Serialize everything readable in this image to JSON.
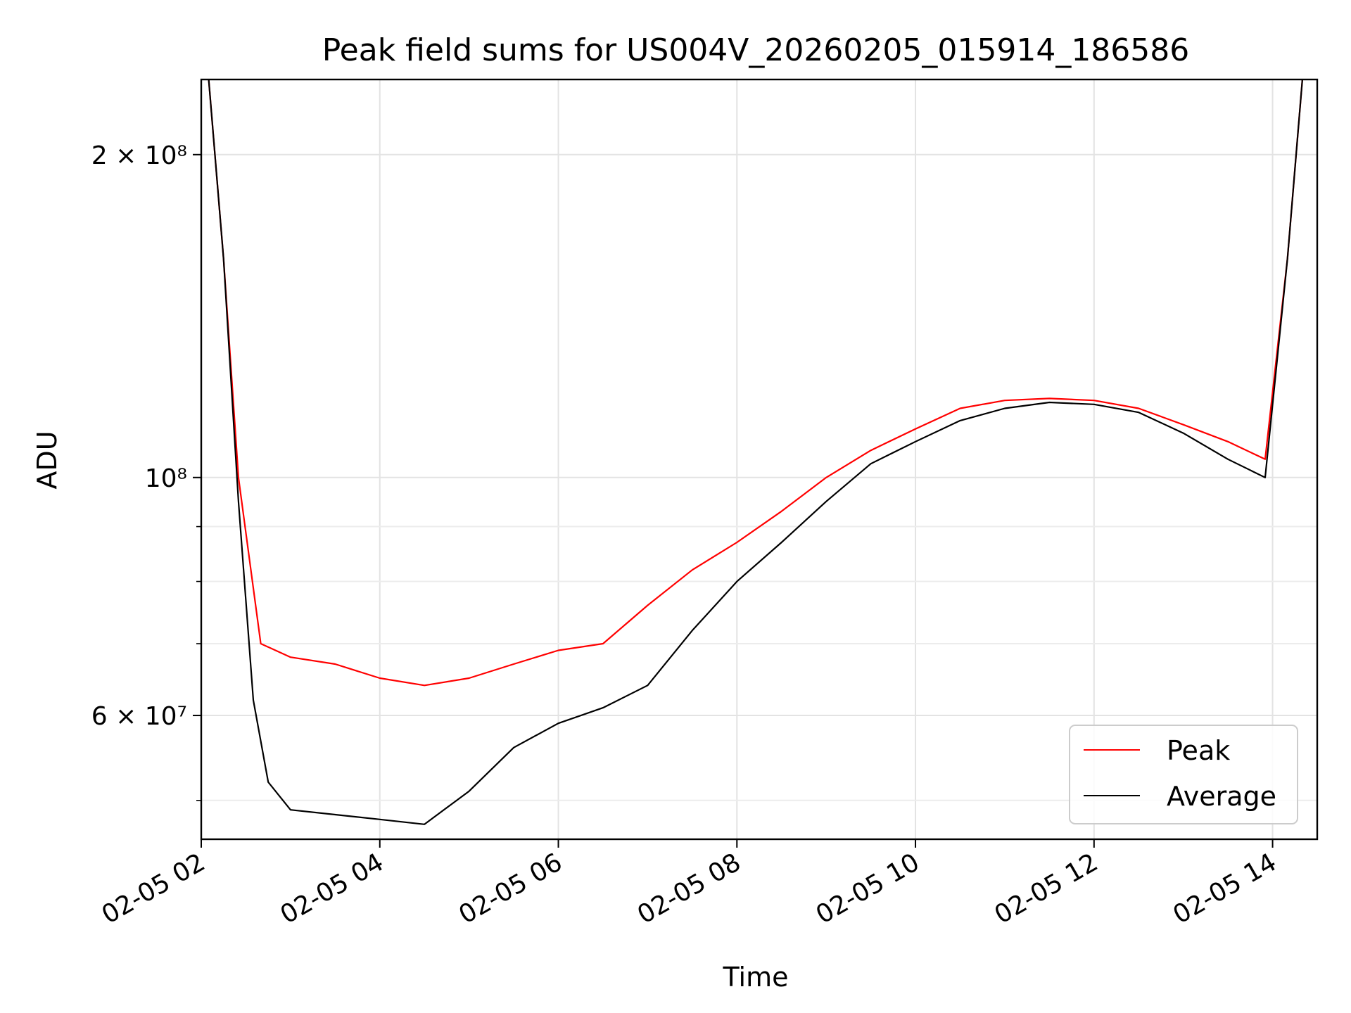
{
  "chart_data": {
    "type": "line",
    "title": "Peak field sums for US004V_20260205_015914_186586",
    "xlabel": "Time",
    "ylabel": "ADU",
    "x_axis": "date",
    "x_range": [
      "2026-02-05 02:00",
      "2026-02-05 14:30"
    ],
    "x_ticks": [
      "02-05 02",
      "02-05 04",
      "02-05 06",
      "02-05 08",
      "02-05 10",
      "02-05 12",
      "02-05 14"
    ],
    "yscale": "log",
    "ylim": [
      46000000,
      235000000
    ],
    "y_tick_labels": [
      {
        "value": 200000000,
        "label": "2 × 10⁸"
      },
      {
        "value": 100000000,
        "label": "10⁸"
      },
      {
        "value": 60000000,
        "label": "6 × 10⁷"
      }
    ],
    "grid": true,
    "legend_position": "lower-right",
    "series": [
      {
        "name": "Peak",
        "color": "#ff0000",
        "x": [
          "2026-02-05 02:05",
          "2026-02-05 02:15",
          "2026-02-05 02:25",
          "2026-02-05 02:40",
          "2026-02-05 03:00",
          "2026-02-05 03:30",
          "2026-02-05 04:00",
          "2026-02-05 04:30",
          "2026-02-05 05:00",
          "2026-02-05 05:30",
          "2026-02-05 06:00",
          "2026-02-05 06:30",
          "2026-02-05 07:00",
          "2026-02-05 07:30",
          "2026-02-05 08:00",
          "2026-02-05 08:30",
          "2026-02-05 09:00",
          "2026-02-05 09:30",
          "2026-02-05 10:00",
          "2026-02-05 10:30",
          "2026-02-05 11:00",
          "2026-02-05 11:30",
          "2026-02-05 12:00",
          "2026-02-05 12:30",
          "2026-02-05 13:00",
          "2026-02-05 13:30",
          "2026-02-05 13:55",
          "2026-02-05 14:10",
          "2026-02-05 14:20"
        ],
        "y": [
          235000000,
          160000000,
          100000000,
          70000000,
          68000000,
          67000000,
          65000000,
          64000000,
          65000000,
          67000000,
          69000000,
          70000000,
          76000000,
          82000000,
          87000000,
          93000000,
          100000000,
          106000000,
          111000000,
          116000000,
          118000000,
          118500000,
          118000000,
          116000000,
          112000000,
          108000000,
          104000000,
          160000000,
          235000000
        ]
      },
      {
        "name": "Average",
        "color": "#000000",
        "x": [
          "2026-02-05 02:05",
          "2026-02-05 02:15",
          "2026-02-05 02:25",
          "2026-02-05 02:35",
          "2026-02-05 02:45",
          "2026-02-05 03:00",
          "2026-02-05 03:30",
          "2026-02-05 04:00",
          "2026-02-05 04:30",
          "2026-02-05 05:00",
          "2026-02-05 05:30",
          "2026-02-05 06:00",
          "2026-02-05 06:30",
          "2026-02-05 07:00",
          "2026-02-05 07:30",
          "2026-02-05 08:00",
          "2026-02-05 08:30",
          "2026-02-05 09:00",
          "2026-02-05 09:30",
          "2026-02-05 10:00",
          "2026-02-05 10:30",
          "2026-02-05 11:00",
          "2026-02-05 11:30",
          "2026-02-05 12:00",
          "2026-02-05 12:30",
          "2026-02-05 13:00",
          "2026-02-05 13:30",
          "2026-02-05 13:55",
          "2026-02-05 14:10",
          "2026-02-05 14:20"
        ],
        "y": [
          235000000,
          160000000,
          95000000,
          62000000,
          52000000,
          49000000,
          48500000,
          48000000,
          47500000,
          51000000,
          56000000,
          59000000,
          61000000,
          64000000,
          72000000,
          80000000,
          87000000,
          95000000,
          103000000,
          108000000,
          113000000,
          116000000,
          117500000,
          117000000,
          115000000,
          110000000,
          104000000,
          100000000,
          160000000,
          235000000
        ]
      }
    ]
  }
}
